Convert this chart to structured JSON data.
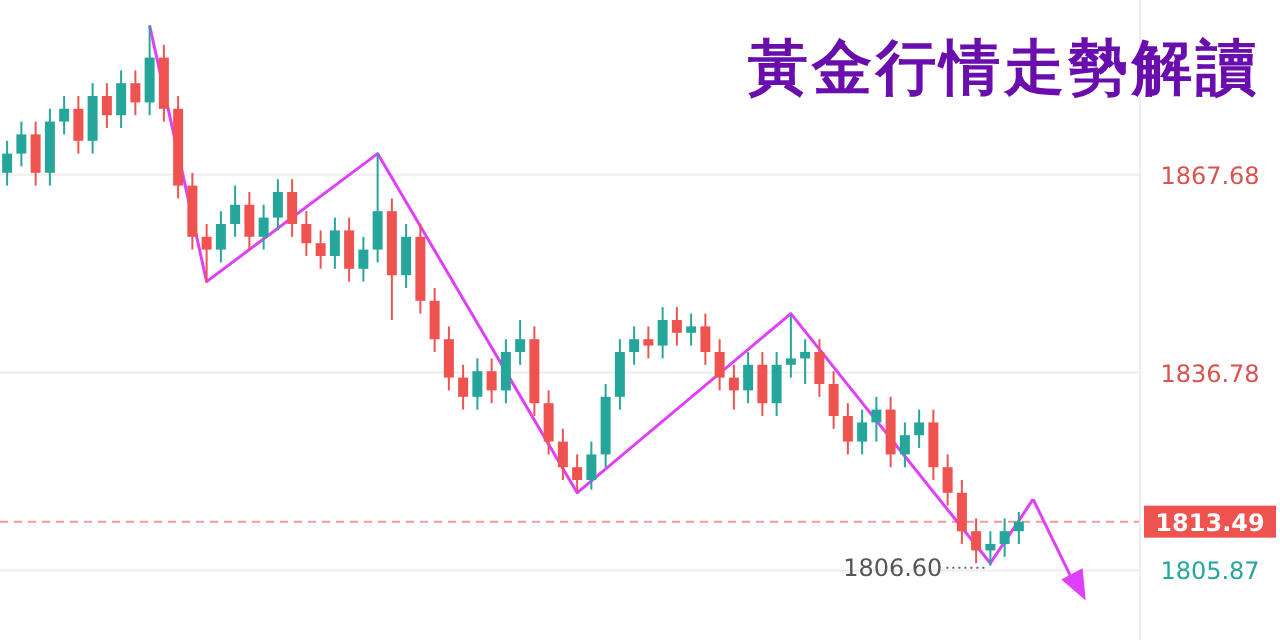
{
  "chart_data": {
    "type": "candlestick",
    "title": "黃金行情走勢解讀",
    "categories": [
      null,
      null,
      null,
      null,
      null,
      null,
      null,
      null,
      null,
      null,
      null,
      null,
      null,
      null,
      null,
      null,
      null,
      null,
      null,
      null,
      null,
      null,
      null,
      null,
      null,
      null,
      null,
      null,
      null,
      null,
      null,
      null,
      null,
      null,
      null,
      null,
      null,
      null,
      null,
      null,
      null,
      null,
      null,
      null,
      null,
      null,
      null,
      null,
      null,
      null,
      null,
      null,
      null,
      null,
      null,
      null,
      null,
      null,
      null,
      null,
      null,
      null,
      null,
      null,
      null,
      null,
      null,
      null,
      null,
      null,
      null,
      null,
      null,
      null,
      null,
      null,
      null,
      null,
      null,
      null
    ],
    "ohlc": [
      [
        1868,
        1873,
        1866,
        1871
      ],
      [
        1871,
        1876,
        1869,
        1874
      ],
      [
        1874,
        1876,
        1866,
        1868
      ],
      [
        1868,
        1878,
        1866,
        1876
      ],
      [
        1876,
        1880,
        1874,
        1878
      ],
      [
        1878,
        1880,
        1871,
        1873
      ],
      [
        1873,
        1882,
        1871,
        1880
      ],
      [
        1880,
        1882,
        1875,
        1877
      ],
      [
        1877,
        1884,
        1875,
        1882
      ],
      [
        1882,
        1884,
        1877,
        1879
      ],
      [
        1879,
        1891.05,
        1877,
        1886
      ],
      [
        1886,
        1888,
        1876,
        1878
      ],
      [
        1878,
        1880,
        1864,
        1866
      ],
      [
        1866,
        1868,
        1856,
        1858
      ],
      [
        1858,
        1860,
        1851.1,
        1856
      ],
      [
        1856,
        1862,
        1854,
        1860
      ],
      [
        1860,
        1866,
        1858,
        1863
      ],
      [
        1863,
        1865,
        1856,
        1858
      ],
      [
        1858,
        1863,
        1856,
        1861
      ],
      [
        1861,
        1867,
        1859,
        1865
      ],
      [
        1865,
        1867,
        1858,
        1860
      ],
      [
        1860,
        1862,
        1855,
        1857
      ],
      [
        1857,
        1859,
        1853,
        1855
      ],
      [
        1855,
        1861,
        1853,
        1859
      ],
      [
        1859,
        1861,
        1851,
        1853
      ],
      [
        1853,
        1858,
        1851,
        1856
      ],
      [
        1856,
        1871.1,
        1854,
        1862
      ],
      [
        1862,
        1864,
        1845,
        1852
      ],
      [
        1852,
        1860,
        1850,
        1858
      ],
      [
        1858,
        1860,
        1846,
        1848
      ],
      [
        1848,
        1850,
        1840,
        1842
      ],
      [
        1842,
        1844,
        1834,
        1836
      ],
      [
        1836,
        1838,
        1831,
        1833
      ],
      [
        1833,
        1839,
        1831,
        1837
      ],
      [
        1837,
        1839,
        1832,
        1834
      ],
      [
        1834,
        1842,
        1832,
        1840
      ],
      [
        1840,
        1845,
        1838,
        1842
      ],
      [
        1842,
        1844,
        1830,
        1832
      ],
      [
        1832,
        1834,
        1824,
        1826
      ],
      [
        1826,
        1828,
        1820,
        1822
      ],
      [
        1822,
        1824,
        1818.3,
        1820
      ],
      [
        1820,
        1826,
        1818.5,
        1824
      ],
      [
        1824,
        1835,
        1822,
        1833
      ],
      [
        1833,
        1842,
        1831,
        1840
      ],
      [
        1840,
        1844,
        1838,
        1842
      ],
      [
        1842,
        1844,
        1839,
        1841
      ],
      [
        1841,
        1847,
        1839,
        1845
      ],
      [
        1845,
        1847,
        1841,
        1843
      ],
      [
        1843,
        1846,
        1841,
        1844
      ],
      [
        1844,
        1846,
        1838,
        1840
      ],
      [
        1840,
        1842,
        1834,
        1836
      ],
      [
        1836,
        1838,
        1831,
        1834
      ],
      [
        1834,
        1840,
        1832,
        1838
      ],
      [
        1838,
        1840,
        1830,
        1832
      ],
      [
        1832,
        1840,
        1830,
        1838
      ],
      [
        1838,
        1845.8,
        1836,
        1839
      ],
      [
        1839,
        1842,
        1835,
        1840
      ],
      [
        1840,
        1842,
        1833,
        1835
      ],
      [
        1835,
        1837,
        1828,
        1830
      ],
      [
        1830,
        1832,
        1824,
        1826
      ],
      [
        1826,
        1831,
        1824,
        1829
      ],
      [
        1829,
        1833,
        1826,
        1831
      ],
      [
        1831,
        1833,
        1822,
        1824
      ],
      [
        1824,
        1829,
        1822,
        1827
      ],
      [
        1827,
        1831,
        1825,
        1829
      ],
      [
        1829,
        1831,
        1820,
        1822
      ],
      [
        1822,
        1824,
        1816,
        1818
      ],
      [
        1818,
        1820,
        1810,
        1812
      ],
      [
        1812,
        1814,
        1807,
        1809
      ],
      [
        1809,
        1812,
        1806.6,
        1810
      ],
      [
        1810,
        1814,
        1808,
        1812
      ],
      [
        1812,
        1815,
        1810,
        1813.49
      ],
      null,
      null,
      null,
      null,
      null,
      null,
      null,
      null
    ],
    "series": [
      {
        "type": "line",
        "color": "#e040fb",
        "values": [
          null,
          null,
          null,
          null,
          null,
          null,
          null,
          null,
          null,
          null,
          1891,
          null,
          null,
          null,
          1851,
          null,
          null,
          null,
          null,
          null,
          null,
          null,
          null,
          null,
          null,
          null,
          1871,
          null,
          null,
          null,
          null,
          null,
          null,
          null,
          null,
          null,
          null,
          null,
          null,
          null,
          1818,
          null,
          null,
          null,
          null,
          null,
          null,
          null,
          null,
          null,
          null,
          null,
          null,
          null,
          null,
          1846,
          null,
          null,
          null,
          null,
          null,
          null,
          null,
          null,
          null,
          null,
          null,
          null,
          null,
          1807,
          null,
          null,
          1817,
          null,
          null,
          null,
          null,
          null,
          null,
          null
        ]
      }
    ],
    "ylim": [
      1795,
      1895
    ],
    "yticks": [
      1867.68,
      1836.78,
      1805.87
    ],
    "grid": "y",
    "ref_lines": [
      {
        "axis": "y",
        "value": 1813.49,
        "label": "1813.49",
        "color": "#ef5350",
        "line_style": "dashed"
      }
    ],
    "annotations": [
      "1806.60"
    ]
  }
}
